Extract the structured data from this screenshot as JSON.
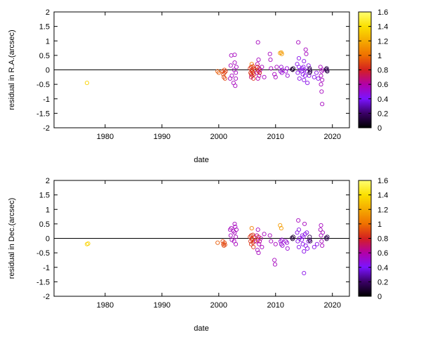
{
  "chart_data": [
    {
      "type": "scatter",
      "title": "",
      "xlabel": "date",
      "ylabel": "residual in R.A.(arcsec)",
      "xlim": [
        1971,
        2023
      ],
      "ylim": [
        -2,
        2
      ],
      "x_ticks": [
        1980,
        1990,
        2000,
        2010,
        2020
      ],
      "y_ticks": [
        -2,
        -1.5,
        -1,
        -0.5,
        0,
        0.5,
        1,
        1.5,
        2
      ],
      "zero_line": true,
      "grid": false,
      "marker": "open-circle",
      "color_scale": {
        "label": "",
        "range": [
          0,
          1.6
        ],
        "ticks": [
          0,
          0.2,
          0.4,
          0.6,
          0.8,
          1,
          1.2,
          1.4,
          1.6
        ],
        "palette": [
          "#000000",
          "#3a0066",
          "#7a14ff",
          "#b300a8",
          "#d42020",
          "#ef7000",
          "#f5aa00",
          "#fbe000",
          "#ffff70"
        ]
      },
      "points": [
        {
          "x": 1976.8,
          "y": -0.45,
          "c": 1.35
        },
        {
          "x": 1999.8,
          "y": -0.05,
          "c": 0.95
        },
        {
          "x": 2000.0,
          "y": -0.1,
          "c": 0.95
        },
        {
          "x": 2000.7,
          "y": -0.05,
          "c": 0.9
        },
        {
          "x": 2000.8,
          "y": -0.15,
          "c": 0.9
        },
        {
          "x": 2000.9,
          "y": -0.25,
          "c": 0.9
        },
        {
          "x": 2001.0,
          "y": -0.1,
          "c": 0.9
        },
        {
          "x": 2001.0,
          "y": 0.0,
          "c": 0.9
        },
        {
          "x": 2001.1,
          "y": -0.3,
          "c": 0.9
        },
        {
          "x": 2001.2,
          "y": -0.05,
          "c": 0.85
        },
        {
          "x": 2002.0,
          "y": -0.3,
          "c": 0.55
        },
        {
          "x": 2002.1,
          "y": 0.15,
          "c": 0.55
        },
        {
          "x": 2002.2,
          "y": 0.5,
          "c": 0.55
        },
        {
          "x": 2002.3,
          "y": -0.2,
          "c": 0.55
        },
        {
          "x": 2002.6,
          "y": -0.45,
          "c": 0.55
        },
        {
          "x": 2002.7,
          "y": 0.0,
          "c": 0.55
        },
        {
          "x": 2002.8,
          "y": 0.52,
          "c": 0.55
        },
        {
          "x": 2002.8,
          "y": 0.25,
          "c": 0.55
        },
        {
          "x": 2002.9,
          "y": -0.55,
          "c": 0.55
        },
        {
          "x": 2003.0,
          "y": -0.3,
          "c": 0.55
        },
        {
          "x": 2003.0,
          "y": -0.1,
          "c": 0.55
        },
        {
          "x": 2003.1,
          "y": 0.1,
          "c": 0.55
        },
        {
          "x": 2005.5,
          "y": 0.05,
          "c": 0.85
        },
        {
          "x": 2005.6,
          "y": -0.1,
          "c": 0.85
        },
        {
          "x": 2005.7,
          "y": 0.1,
          "c": 0.85
        },
        {
          "x": 2005.7,
          "y": -0.15,
          "c": 0.85
        },
        {
          "x": 2005.8,
          "y": 0.0,
          "c": 0.85
        },
        {
          "x": 2005.8,
          "y": 0.2,
          "c": 1.05
        },
        {
          "x": 2005.9,
          "y": -0.05,
          "c": 0.85
        },
        {
          "x": 2005.9,
          "y": -0.2,
          "c": 0.85
        },
        {
          "x": 2006.0,
          "y": 0.12,
          "c": 0.85
        },
        {
          "x": 2006.0,
          "y": -0.1,
          "c": 0.85
        },
        {
          "x": 2006.1,
          "y": -0.3,
          "c": 0.85
        },
        {
          "x": 2006.1,
          "y": 0.05,
          "c": 0.85
        },
        {
          "x": 2006.2,
          "y": -0.15,
          "c": 0.85
        },
        {
          "x": 2006.3,
          "y": 0.0,
          "c": 0.85
        },
        {
          "x": 2005.7,
          "y": -0.25,
          "c": 0.7
        },
        {
          "x": 2006.7,
          "y": -0.1,
          "c": 0.6
        },
        {
          "x": 2006.8,
          "y": 0.2,
          "c": 0.6
        },
        {
          "x": 2006.8,
          "y": 0.1,
          "c": 0.8
        },
        {
          "x": 2006.9,
          "y": -0.3,
          "c": 0.6
        },
        {
          "x": 2006.9,
          "y": 0.95,
          "c": 0.55
        },
        {
          "x": 2007.0,
          "y": -0.05,
          "c": 0.8
        },
        {
          "x": 2007.0,
          "y": 0.35,
          "c": 0.55
        },
        {
          "x": 2007.1,
          "y": -0.2,
          "c": 0.6
        },
        {
          "x": 2007.1,
          "y": 0.05,
          "c": 0.8
        },
        {
          "x": 2007.2,
          "y": -0.1,
          "c": 0.8
        },
        {
          "x": 2007.3,
          "y": 0.0,
          "c": 0.6
        },
        {
          "x": 2007.6,
          "y": 0.1,
          "c": 0.55
        },
        {
          "x": 2008.0,
          "y": -0.25,
          "c": 0.55
        },
        {
          "x": 2009.0,
          "y": 0.55,
          "c": 0.55
        },
        {
          "x": 2009.1,
          "y": 0.35,
          "c": 0.55
        },
        {
          "x": 2009.2,
          "y": 0.05,
          "c": 0.55
        },
        {
          "x": 2009.8,
          "y": -0.15,
          "c": 0.55
        },
        {
          "x": 2010.0,
          "y": -0.25,
          "c": 0.55
        },
        {
          "x": 2010.2,
          "y": 0.1,
          "c": 0.55
        },
        {
          "x": 2010.8,
          "y": 0.58,
          "c": 1.15
        },
        {
          "x": 2011.0,
          "y": 0.6,
          "c": 1.15
        },
        {
          "x": 2011.1,
          "y": 0.55,
          "c": 1.15
        },
        {
          "x": 2010.9,
          "y": -0.05,
          "c": 0.5
        },
        {
          "x": 2011.0,
          "y": 0.1,
          "c": 0.5
        },
        {
          "x": 2011.1,
          "y": -0.1,
          "c": 0.5
        },
        {
          "x": 2011.2,
          "y": 0.0,
          "c": 0.5
        },
        {
          "x": 2011.8,
          "y": -0.05,
          "c": 0.5
        },
        {
          "x": 2012.0,
          "y": 0.05,
          "c": 0.5
        },
        {
          "x": 2012.1,
          "y": -0.2,
          "c": 0.5
        },
        {
          "x": 2012.9,
          "y": 0.02,
          "c": 0.1
        },
        {
          "x": 2013.0,
          "y": 0.0,
          "c": 0.1
        },
        {
          "x": 2013.1,
          "y": 0.05,
          "c": 0.1
        },
        {
          "x": 2013.8,
          "y": 0.2,
          "c": 0.45
        },
        {
          "x": 2013.9,
          "y": -0.1,
          "c": 0.45
        },
        {
          "x": 2014.0,
          "y": 0.95,
          "c": 0.55
        },
        {
          "x": 2014.1,
          "y": 0.4,
          "c": 0.45
        },
        {
          "x": 2014.1,
          "y": 0.1,
          "c": 0.45
        },
        {
          "x": 2014.2,
          "y": -0.3,
          "c": 0.45
        },
        {
          "x": 2014.3,
          "y": 0.0,
          "c": 0.45
        },
        {
          "x": 2014.6,
          "y": -0.05,
          "c": 0.45
        },
        {
          "x": 2014.7,
          "y": 0.05,
          "c": 0.45
        },
        {
          "x": 2014.8,
          "y": -0.15,
          "c": 0.45
        },
        {
          "x": 2014.9,
          "y": 0.1,
          "c": 0.45
        },
        {
          "x": 2015.0,
          "y": -0.35,
          "c": 0.45
        },
        {
          "x": 2015.0,
          "y": 0.3,
          "c": 0.45
        },
        {
          "x": 2015.1,
          "y": 0.0,
          "c": 0.45
        },
        {
          "x": 2015.2,
          "y": -0.2,
          "c": 0.45
        },
        {
          "x": 2015.3,
          "y": 0.7,
          "c": 0.55
        },
        {
          "x": 2015.4,
          "y": 0.55,
          "c": 0.55
        },
        {
          "x": 2015.5,
          "y": -0.05,
          "c": 0.45
        },
        {
          "x": 2015.6,
          "y": -0.45,
          "c": 0.45
        },
        {
          "x": 2015.8,
          "y": 0.15,
          "c": 0.45
        },
        {
          "x": 2015.9,
          "y": -0.2,
          "c": 0.45
        },
        {
          "x": 2016.0,
          "y": 0.05,
          "c": 0.15
        },
        {
          "x": 2016.0,
          "y": 0.0,
          "c": 0.15
        },
        {
          "x": 2016.0,
          "y": -0.1,
          "c": 0.15
        },
        {
          "x": 2016.1,
          "y": -0.05,
          "c": 0.15
        },
        {
          "x": 2016.8,
          "y": -0.25,
          "c": 0.45
        },
        {
          "x": 2017.2,
          "y": -0.1,
          "c": 0.45
        },
        {
          "x": 2017.5,
          "y": -0.3,
          "c": 0.45
        },
        {
          "x": 2017.9,
          "y": 0.1,
          "c": 0.55
        },
        {
          "x": 2018.0,
          "y": -0.2,
          "c": 0.55
        },
        {
          "x": 2018.0,
          "y": -0.5,
          "c": 0.55
        },
        {
          "x": 2018.1,
          "y": -0.05,
          "c": 0.55
        },
        {
          "x": 2018.1,
          "y": -0.75,
          "c": 0.55
        },
        {
          "x": 2018.2,
          "y": -1.18,
          "c": 0.55
        },
        {
          "x": 2018.2,
          "y": -0.35,
          "c": 0.55
        },
        {
          "x": 2018.3,
          "y": 0.0,
          "c": 0.55
        },
        {
          "x": 2018.9,
          "y": 0.02,
          "c": 0.15
        },
        {
          "x": 2019.0,
          "y": -0.02,
          "c": 0.15
        },
        {
          "x": 2019.0,
          "y": 0.05,
          "c": 0.15
        },
        {
          "x": 2019.1,
          "y": -0.05,
          "c": 0.15
        }
      ]
    },
    {
      "type": "scatter",
      "title": "",
      "xlabel": "date",
      "ylabel": "residual in Dec.(arcsec)",
      "xlim": [
        1971,
        2023
      ],
      "ylim": [
        -2,
        2
      ],
      "x_ticks": [
        1980,
        1990,
        2000,
        2010,
        2020
      ],
      "y_ticks": [
        -2,
        -1.5,
        -1,
        -0.5,
        0,
        0.5,
        1,
        1.5,
        2
      ],
      "zero_line": true,
      "grid": false,
      "marker": "open-circle",
      "color_scale": {
        "label": "",
        "range": [
          0,
          1.6
        ],
        "ticks": [
          0,
          0.2,
          0.4,
          0.6,
          0.8,
          1,
          1.2,
          1.4,
          1.6
        ],
        "palette": [
          "#000000",
          "#3a0066",
          "#7a14ff",
          "#b300a8",
          "#d42020",
          "#ef7000",
          "#f5aa00",
          "#fbe000",
          "#ffff70"
        ]
      },
      "points": [
        {
          "x": 1976.8,
          "y": -0.2,
          "c": 1.35
        },
        {
          "x": 1977.0,
          "y": -0.18,
          "c": 1.35
        },
        {
          "x": 1999.8,
          "y": -0.15,
          "c": 0.95
        },
        {
          "x": 2000.7,
          "y": -0.1,
          "c": 0.9
        },
        {
          "x": 2000.8,
          "y": -0.2,
          "c": 0.9
        },
        {
          "x": 2000.9,
          "y": -0.25,
          "c": 0.9
        },
        {
          "x": 2001.0,
          "y": -0.15,
          "c": 0.9
        },
        {
          "x": 2001.1,
          "y": -0.22,
          "c": 0.9
        },
        {
          "x": 2002.0,
          "y": 0.3,
          "c": 0.55
        },
        {
          "x": 2002.1,
          "y": 0.1,
          "c": 0.55
        },
        {
          "x": 2002.2,
          "y": 0.35,
          "c": 0.55
        },
        {
          "x": 2002.3,
          "y": -0.05,
          "c": 0.55
        },
        {
          "x": 2002.6,
          "y": 0.25,
          "c": 0.55
        },
        {
          "x": 2002.7,
          "y": -0.1,
          "c": 0.55
        },
        {
          "x": 2002.8,
          "y": 0.5,
          "c": 0.55
        },
        {
          "x": 2002.8,
          "y": 0.2,
          "c": 0.55
        },
        {
          "x": 2002.9,
          "y": 0.4,
          "c": 0.55
        },
        {
          "x": 2003.0,
          "y": 0.05,
          "c": 0.55
        },
        {
          "x": 2003.0,
          "y": -0.2,
          "c": 0.55
        },
        {
          "x": 2003.1,
          "y": 0.3,
          "c": 0.55
        },
        {
          "x": 2005.5,
          "y": 0.05,
          "c": 0.85
        },
        {
          "x": 2005.6,
          "y": -0.1,
          "c": 0.85
        },
        {
          "x": 2005.7,
          "y": 0.1,
          "c": 0.85
        },
        {
          "x": 2005.7,
          "y": -0.2,
          "c": 0.85
        },
        {
          "x": 2005.8,
          "y": 0.35,
          "c": 1.05
        },
        {
          "x": 2005.8,
          "y": 0.0,
          "c": 0.85
        },
        {
          "x": 2005.9,
          "y": -0.05,
          "c": 0.85
        },
        {
          "x": 2006.0,
          "y": 0.12,
          "c": 0.85
        },
        {
          "x": 2006.0,
          "y": -0.15,
          "c": 0.85
        },
        {
          "x": 2006.1,
          "y": -0.3,
          "c": 0.85
        },
        {
          "x": 2006.2,
          "y": 0.05,
          "c": 0.85
        },
        {
          "x": 2006.3,
          "y": -0.1,
          "c": 0.85
        },
        {
          "x": 2006.6,
          "y": -0.1,
          "c": 0.6
        },
        {
          "x": 2006.7,
          "y": 0.1,
          "c": 0.6
        },
        {
          "x": 2006.8,
          "y": -0.4,
          "c": 0.55
        },
        {
          "x": 2006.9,
          "y": -0.05,
          "c": 0.8
        },
        {
          "x": 2006.9,
          "y": 0.3,
          "c": 0.55
        },
        {
          "x": 2007.0,
          "y": -0.5,
          "c": 0.55
        },
        {
          "x": 2007.0,
          "y": 0.05,
          "c": 0.8
        },
        {
          "x": 2007.1,
          "y": -0.2,
          "c": 0.6
        },
        {
          "x": 2007.2,
          "y": -0.1,
          "c": 0.6
        },
        {
          "x": 2007.4,
          "y": 0.0,
          "c": 0.6
        },
        {
          "x": 2007.6,
          "y": -0.3,
          "c": 0.55
        },
        {
          "x": 2008.0,
          "y": 0.15,
          "c": 0.55
        },
        {
          "x": 2009.0,
          "y": 0.1,
          "c": 0.55
        },
        {
          "x": 2009.2,
          "y": -0.1,
          "c": 0.55
        },
        {
          "x": 2009.8,
          "y": -0.75,
          "c": 0.55
        },
        {
          "x": 2009.9,
          "y": -0.9,
          "c": 0.55
        },
        {
          "x": 2010.0,
          "y": -0.2,
          "c": 0.55
        },
        {
          "x": 2010.8,
          "y": 0.45,
          "c": 1.15
        },
        {
          "x": 2011.0,
          "y": 0.35,
          "c": 1.15
        },
        {
          "x": 2010.9,
          "y": -0.1,
          "c": 0.5
        },
        {
          "x": 2011.0,
          "y": -0.2,
          "c": 0.5
        },
        {
          "x": 2011.1,
          "y": -0.05,
          "c": 0.5
        },
        {
          "x": 2011.2,
          "y": -0.25,
          "c": 0.5
        },
        {
          "x": 2011.8,
          "y": -0.1,
          "c": 0.5
        },
        {
          "x": 2012.0,
          "y": -0.15,
          "c": 0.5
        },
        {
          "x": 2012.1,
          "y": -0.35,
          "c": 0.5
        },
        {
          "x": 2012.9,
          "y": 0.02,
          "c": 0.1
        },
        {
          "x": 2013.0,
          "y": -0.02,
          "c": 0.1
        },
        {
          "x": 2013.1,
          "y": 0.05,
          "c": 0.1
        },
        {
          "x": 2013.8,
          "y": 0.2,
          "c": 0.45
        },
        {
          "x": 2013.9,
          "y": -0.1,
          "c": 0.45
        },
        {
          "x": 2014.0,
          "y": 0.62,
          "c": 0.55
        },
        {
          "x": 2014.1,
          "y": 0.3,
          "c": 0.45
        },
        {
          "x": 2014.1,
          "y": -0.3,
          "c": 0.45
        },
        {
          "x": 2014.2,
          "y": 0.0,
          "c": 0.45
        },
        {
          "x": 2014.6,
          "y": -0.05,
          "c": 0.45
        },
        {
          "x": 2014.7,
          "y": 0.1,
          "c": 0.45
        },
        {
          "x": 2014.8,
          "y": -0.2,
          "c": 0.45
        },
        {
          "x": 2014.9,
          "y": 0.05,
          "c": 0.45
        },
        {
          "x": 2015.0,
          "y": -0.45,
          "c": 0.45
        },
        {
          "x": 2015.0,
          "y": -1.2,
          "c": 0.45
        },
        {
          "x": 2015.1,
          "y": 0.5,
          "c": 0.55
        },
        {
          "x": 2015.2,
          "y": 0.15,
          "c": 0.45
        },
        {
          "x": 2015.3,
          "y": -0.25,
          "c": 0.45
        },
        {
          "x": 2015.5,
          "y": 0.2,
          "c": 0.45
        },
        {
          "x": 2015.6,
          "y": -0.35,
          "c": 0.45
        },
        {
          "x": 2015.8,
          "y": -0.1,
          "c": 0.45
        },
        {
          "x": 2016.0,
          "y": 0.05,
          "c": 0.15
        },
        {
          "x": 2016.0,
          "y": -0.05,
          "c": 0.15
        },
        {
          "x": 2016.1,
          "y": -0.1,
          "c": 0.15
        },
        {
          "x": 2016.8,
          "y": -0.3,
          "c": 0.45
        },
        {
          "x": 2017.3,
          "y": -0.2,
          "c": 0.45
        },
        {
          "x": 2017.9,
          "y": 0.3,
          "c": 0.55
        },
        {
          "x": 2018.0,
          "y": 0.45,
          "c": 0.55
        },
        {
          "x": 2018.0,
          "y": 0.1,
          "c": 0.55
        },
        {
          "x": 2018.1,
          "y": -0.1,
          "c": 0.55
        },
        {
          "x": 2018.2,
          "y": -0.25,
          "c": 0.55
        },
        {
          "x": 2018.3,
          "y": 0.2,
          "c": 0.55
        },
        {
          "x": 2018.9,
          "y": 0.02,
          "c": 0.15
        },
        {
          "x": 2019.0,
          "y": -0.02,
          "c": 0.15
        },
        {
          "x": 2019.1,
          "y": 0.05,
          "c": 0.15
        }
      ]
    }
  ]
}
